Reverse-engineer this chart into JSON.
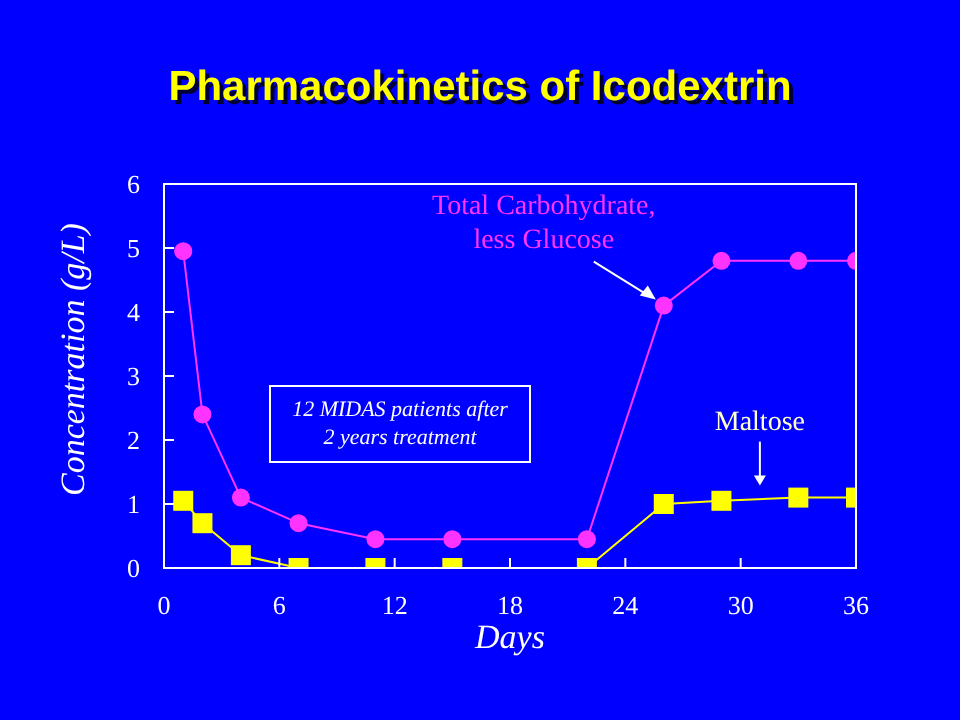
{
  "chart_data": {
    "type": "line",
    "title": "Pharmacokinetics of Icodextrin",
    "xlabel": "Days",
    "ylabel": "Concentration (g/L)",
    "x": [
      1,
      2,
      4,
      7,
      11,
      15,
      22,
      26,
      29,
      33,
      36
    ],
    "series": [
      {
        "name": "Total Carbohydrate, less Glucose",
        "color": "#ff33ff",
        "marker": "circle",
        "values": [
          4.95,
          2.4,
          1.1,
          0.7,
          0.45,
          0.45,
          0.45,
          4.1,
          4.8,
          4.8,
          4.8
        ]
      },
      {
        "name": "Maltose",
        "color": "#ffff00",
        "marker": "square",
        "values": [
          1.05,
          0.7,
          0.2,
          0,
          0,
          0,
          0,
          1.0,
          1.05,
          1.1,
          1.1
        ]
      }
    ],
    "annotations": [
      "12 MIDAS patients after 2 years treatment"
    ],
    "xlim": [
      0,
      36
    ],
    "xticks": [
      0,
      6,
      12,
      18,
      24,
      30,
      36
    ],
    "ylim": [
      0,
      6
    ],
    "yticks": [
      0,
      1,
      2,
      3,
      4,
      5,
      6
    ],
    "grid": false,
    "legend": false,
    "line_style": "solid"
  }
}
